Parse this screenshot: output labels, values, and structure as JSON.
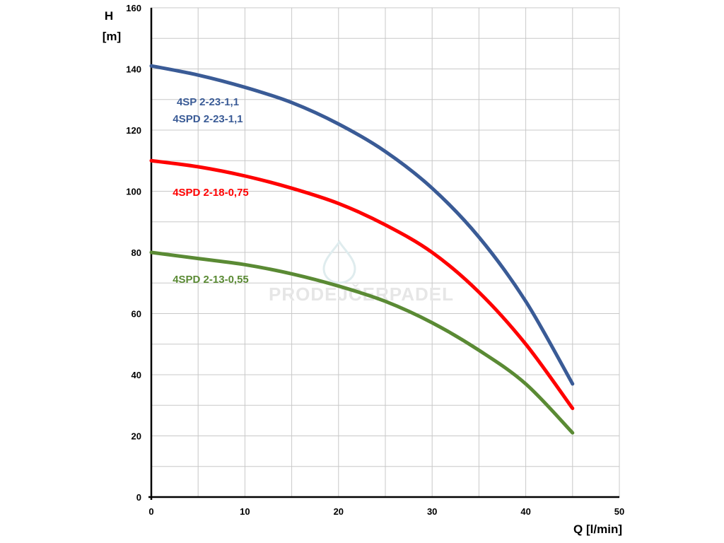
{
  "chart_data": {
    "type": "line",
    "xlabel": "Q [l/min]",
    "ylabel_line1": "H",
    "ylabel_line2": "[m]",
    "xlim": [
      0,
      50
    ],
    "ylim": [
      0,
      160
    ],
    "x_ticks": [
      0,
      10,
      20,
      30,
      40,
      50
    ],
    "y_ticks": [
      0,
      20,
      40,
      60,
      80,
      100,
      120,
      140,
      160
    ],
    "grid": true,
    "watermark": "PRODEJČERPADEL",
    "series": [
      {
        "name": "4SP 2-23-1,1",
        "name2": "4SPD 2-23-1,1",
        "color": "#3a5b96",
        "x": [
          0,
          5,
          10,
          15,
          20,
          25,
          30,
          35,
          40,
          45
        ],
        "y": [
          141,
          138,
          134,
          129,
          122,
          113,
          101,
          85,
          64,
          37
        ]
      },
      {
        "name": "4SPD 2-18-0,75",
        "color": "#ff0000",
        "x": [
          0,
          5,
          10,
          15,
          20,
          25,
          30,
          35,
          40,
          45
        ],
        "y": [
          110,
          108,
          105,
          101,
          96,
          89,
          80,
          67,
          50,
          29
        ]
      },
      {
        "name": "4SPD 2-13-0,55",
        "color": "#5a8a34",
        "x": [
          0,
          5,
          10,
          15,
          20,
          25,
          30,
          35,
          40,
          45
        ],
        "y": [
          80,
          78,
          76,
          73,
          69,
          64,
          57,
          48,
          37,
          21
        ]
      }
    ]
  }
}
